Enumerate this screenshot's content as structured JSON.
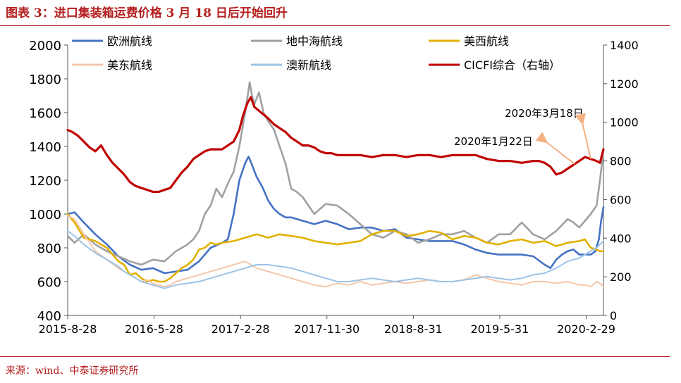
{
  "figure_title": "图表 3：进口集装箱运费价格 3 月 18 日后开始回升",
  "source": "来源：wind、中泰证券研究所",
  "colors": {
    "title": "#b41e1e",
    "europe": "#4472c4",
    "mediterranean": "#a0a0a0",
    "us_west": "#e2b000",
    "us_east": "#f4c7ab",
    "australia": "#9dc3e6",
    "cicfi": "#c00000",
    "arrow": "#f4b183"
  },
  "annotations": [
    {
      "text": "2020年1月22日",
      "x": "2020-1-22"
    },
    {
      "text": "2020年3月18日",
      "x": "2020-3-18"
    }
  ],
  "chart_data": {
    "type": "line",
    "title": "进口集装箱运费价格 3 月 18 日后开始回升",
    "xlabel": "",
    "ylabel": "",
    "x_range": [
      2015.66,
      2020.31
    ],
    "x_ticks": [
      {
        "label": "2015-8-28",
        "x": 2015.66
      },
      {
        "label": "2016-5-28",
        "x": 2016.41
      },
      {
        "label": "2017-2-28",
        "x": 2017.16
      },
      {
        "label": "2017-11-30",
        "x": 2017.91
      },
      {
        "label": "2018-8-31",
        "x": 2018.66
      },
      {
        "label": "2019-5-31",
        "x": 2019.41
      },
      {
        "label": "2020-2-29",
        "x": 2020.16
      }
    ],
    "ylim_left": [
      400,
      2000
    ],
    "yticks_left": [
      400,
      600,
      800,
      1000,
      1200,
      1400,
      1600,
      1800,
      2000
    ],
    "ylim_right": [
      0,
      1400
    ],
    "yticks_right": [
      0,
      200,
      400,
      600,
      800,
      1000,
      1200,
      1400
    ],
    "grid": false,
    "legend_position": "top",
    "series": [
      {
        "name": "欧洲航线",
        "axis": "left",
        "key": "europe",
        "width": 2.6,
        "x": [
          2015.66,
          2015.72,
          2015.8,
          2015.9,
          2016.0,
          2016.1,
          2016.2,
          2016.3,
          2016.4,
          2016.5,
          2016.6,
          2016.7,
          2016.8,
          2016.9,
          2017.0,
          2017.05,
          2017.1,
          2017.15,
          2017.2,
          2017.23,
          2017.26,
          2017.3,
          2017.35,
          2017.4,
          2017.45,
          2017.5,
          2017.55,
          2017.6,
          2017.7,
          2017.8,
          2017.9,
          2018.0,
          2018.1,
          2018.2,
          2018.3,
          2018.4,
          2018.5,
          2018.6,
          2018.7,
          2018.8,
          2018.9,
          2019.0,
          2019.1,
          2019.2,
          2019.3,
          2019.4,
          2019.5,
          2019.6,
          2019.7,
          2019.8,
          2019.85,
          2019.9,
          2019.95,
          2020.0,
          2020.05,
          2020.1,
          2020.15,
          2020.2,
          2020.24,
          2020.27,
          2020.29,
          2020.31
        ],
        "y": [
          1000,
          1010,
          950,
          880,
          820,
          750,
          700,
          670,
          680,
          650,
          660,
          670,
          720,
          800,
          830,
          850,
          1000,
          1200,
          1300,
          1340,
          1290,
          1220,
          1160,
          1080,
          1030,
          1000,
          980,
          980,
          960,
          940,
          960,
          940,
          910,
          920,
          920,
          900,
          910,
          860,
          850,
          840,
          840,
          840,
          820,
          790,
          770,
          760,
          760,
          760,
          750,
          700,
          680,
          730,
          760,
          780,
          790,
          760,
          760,
          760,
          780,
          850,
          960,
          1040
        ]
      },
      {
        "name": "地中海航线",
        "axis": "left",
        "key": "mediterranean",
        "width": 2.6,
        "x": [
          2015.66,
          2015.72,
          2015.8,
          2015.9,
          2016.0,
          2016.1,
          2016.2,
          2016.3,
          2016.4,
          2016.5,
          2016.6,
          2016.7,
          2016.75,
          2016.8,
          2016.85,
          2016.9,
          2016.95,
          2017.0,
          2017.05,
          2017.1,
          2017.15,
          2017.2,
          2017.24,
          2017.26,
          2017.28,
          2017.32,
          2017.36,
          2017.4,
          2017.45,
          2017.5,
          2017.55,
          2017.6,
          2017.65,
          2017.7,
          2017.75,
          2017.8,
          2017.9,
          2018.0,
          2018.1,
          2018.2,
          2018.3,
          2018.4,
          2018.5,
          2018.6,
          2018.7,
          2018.8,
          2018.9,
          2019.0,
          2019.1,
          2019.2,
          2019.3,
          2019.4,
          2019.5,
          2019.6,
          2019.7,
          2019.8,
          2019.9,
          2020.0,
          2020.05,
          2020.1,
          2020.15,
          2020.2,
          2020.25,
          2020.28,
          2020.31
        ],
        "y": [
          870,
          830,
          880,
          820,
          780,
          750,
          720,
          700,
          730,
          720,
          780,
          820,
          850,
          900,
          1000,
          1050,
          1150,
          1100,
          1180,
          1250,
          1400,
          1600,
          1780,
          1700,
          1650,
          1720,
          1600,
          1550,
          1500,
          1400,
          1300,
          1150,
          1130,
          1100,
          1050,
          1000,
          1060,
          1050,
          1000,
          940,
          880,
          860,
          900,
          880,
          830,
          850,
          880,
          880,
          900,
          860,
          830,
          880,
          880,
          950,
          880,
          850,
          900,
          970,
          950,
          920,
          960,
          1000,
          1050,
          1200,
          1380
        ]
      },
      {
        "name": "美西航线",
        "axis": "left",
        "key": "us_west",
        "width": 2.6,
        "x": [
          2015.66,
          2015.72,
          2015.8,
          2015.9,
          2016.0,
          2016.1,
          2016.15,
          2016.2,
          2016.25,
          2016.3,
          2016.35,
          2016.4,
          2016.45,
          2016.5,
          2016.55,
          2016.6,
          2016.65,
          2016.7,
          2016.75,
          2016.8,
          2016.85,
          2016.9,
          2016.95,
          2017.0,
          2017.1,
          2017.2,
          2017.3,
          2017.4,
          2017.5,
          2017.6,
          2017.7,
          2017.8,
          2017.9,
          2018.0,
          2018.1,
          2018.2,
          2018.3,
          2018.4,
          2018.5,
          2018.6,
          2018.7,
          2018.8,
          2018.9,
          2019.0,
          2019.1,
          2019.2,
          2019.3,
          2019.4,
          2019.5,
          2019.6,
          2019.7,
          2019.8,
          2019.9,
          2020.0,
          2020.1,
          2020.15,
          2020.2,
          2020.25,
          2020.28,
          2020.31
        ],
        "y": [
          1000,
          950,
          860,
          840,
          800,
          720,
          700,
          640,
          650,
          620,
          600,
          610,
          600,
          600,
          620,
          650,
          680,
          700,
          730,
          790,
          800,
          830,
          820,
          830,
          840,
          860,
          880,
          860,
          880,
          870,
          860,
          840,
          830,
          820,
          830,
          840,
          880,
          900,
          900,
          870,
          880,
          900,
          890,
          850,
          870,
          860,
          830,
          820,
          840,
          850,
          830,
          840,
          810,
          830,
          840,
          850,
          800,
          790,
          780,
          780
        ]
      },
      {
        "name": "美东航线",
        "axis": "left",
        "key": "us_east",
        "width": 2.0,
        "x": [
          2015.66,
          2015.72,
          2015.8,
          2015.9,
          2016.0,
          2016.1,
          2016.15,
          2016.2,
          2016.25,
          2016.3,
          2016.35,
          2016.4,
          2016.45,
          2016.5,
          2016.55,
          2016.6,
          2016.7,
          2016.8,
          2016.9,
          2017.0,
          2017.1,
          2017.2,
          2017.3,
          2017.4,
          2017.5,
          2017.6,
          2017.7,
          2017.8,
          2017.9,
          2018.0,
          2018.1,
          2018.2,
          2018.3,
          2018.4,
          2018.5,
          2018.6,
          2018.7,
          2018.8,
          2018.9,
          2019.0,
          2019.1,
          2019.2,
          2019.3,
          2019.4,
          2019.5,
          2019.6,
          2019.7,
          2019.8,
          2019.9,
          2020.0,
          2020.1,
          2020.15,
          2020.2,
          2020.25,
          2020.28,
          2020.31
        ],
        "y": [
          990,
          970,
          880,
          780,
          730,
          680,
          660,
          640,
          620,
          600,
          610,
          590,
          580,
          570,
          580,
          600,
          620,
          640,
          660,
          680,
          700,
          720,
          680,
          660,
          640,
          620,
          600,
          580,
          570,
          590,
          580,
          600,
          580,
          590,
          600,
          590,
          600,
          610,
          600,
          600,
          610,
          640,
          620,
          600,
          590,
          580,
          600,
          600,
          590,
          600,
          580,
          580,
          570,
          600,
          590,
          570
        ]
      },
      {
        "name": "澳新航线",
        "axis": "left",
        "key": "australia",
        "width": 2.0,
        "x": [
          2015.66,
          2015.72,
          2015.8,
          2015.9,
          2016.0,
          2016.1,
          2016.15,
          2016.2,
          2016.25,
          2016.3,
          2016.35,
          2016.4,
          2016.45,
          2016.5,
          2016.55,
          2016.6,
          2016.7,
          2016.8,
          2016.9,
          2017.0,
          2017.1,
          2017.2,
          2017.3,
          2017.4,
          2017.5,
          2017.6,
          2017.7,
          2017.8,
          2017.9,
          2018.0,
          2018.1,
          2018.2,
          2018.3,
          2018.4,
          2018.5,
          2018.6,
          2018.7,
          2018.8,
          2018.9,
          2019.0,
          2019.1,
          2019.2,
          2019.3,
          2019.4,
          2019.5,
          2019.6,
          2019.7,
          2019.8,
          2019.9,
          2020.0,
          2020.1,
          2020.15,
          2020.2,
          2020.25,
          2020.28,
          2020.31
        ],
        "y": [
          900,
          870,
          820,
          770,
          730,
          690,
          660,
          640,
          620,
          600,
          590,
          580,
          570,
          560,
          570,
          580,
          590,
          600,
          620,
          640,
          660,
          680,
          700,
          700,
          690,
          680,
          660,
          640,
          620,
          600,
          600,
          610,
          620,
          610,
          600,
          610,
          620,
          610,
          600,
          600,
          610,
          620,
          630,
          620,
          610,
          620,
          640,
          650,
          680,
          720,
          740,
          760,
          780,
          800,
          820,
          840
        ]
      },
      {
        "name": "CICFI综合（右轴）",
        "axis": "right",
        "key": "cicfi",
        "width": 3.2,
        "x": [
          2015.66,
          2015.7,
          2015.75,
          2015.8,
          2015.85,
          2015.9,
          2015.95,
          2016.0,
          2016.05,
          2016.1,
          2016.15,
          2016.2,
          2016.25,
          2016.3,
          2016.35,
          2016.4,
          2016.45,
          2016.5,
          2016.55,
          2016.6,
          2016.65,
          2016.7,
          2016.75,
          2016.8,
          2016.85,
          2016.9,
          2016.95,
          2017.0,
          2017.05,
          2017.1,
          2017.15,
          2017.18,
          2017.22,
          2017.25,
          2017.28,
          2017.32,
          2017.36,
          2017.4,
          2017.45,
          2017.5,
          2017.55,
          2017.6,
          2017.65,
          2017.7,
          2017.75,
          2017.8,
          2017.85,
          2017.9,
          2017.95,
          2018.0,
          2018.1,
          2018.2,
          2018.3,
          2018.4,
          2018.5,
          2018.6,
          2018.7,
          2018.8,
          2018.9,
          2019.0,
          2019.1,
          2019.2,
          2019.3,
          2019.4,
          2019.5,
          2019.6,
          2019.7,
          2019.75,
          2019.8,
          2019.85,
          2019.9,
          2019.95,
          2020.0,
          2020.05,
          2020.1,
          2020.15,
          2020.2,
          2020.25,
          2020.28,
          2020.31
        ],
        "y": [
          960,
          950,
          930,
          900,
          870,
          850,
          880,
          830,
          790,
          760,
          730,
          690,
          670,
          660,
          650,
          640,
          640,
          650,
          660,
          700,
          740,
          770,
          810,
          830,
          850,
          860,
          860,
          860,
          880,
          900,
          960,
          1030,
          1100,
          1130,
          1080,
          1060,
          1040,
          1020,
          990,
          970,
          950,
          920,
          900,
          880,
          880,
          870,
          850,
          840,
          840,
          830,
          830,
          830,
          820,
          830,
          830,
          820,
          830,
          830,
          820,
          830,
          830,
          830,
          810,
          800,
          800,
          790,
          800,
          800,
          790,
          770,
          730,
          740,
          760,
          780,
          800,
          820,
          810,
          800,
          790,
          860
        ]
      }
    ]
  }
}
